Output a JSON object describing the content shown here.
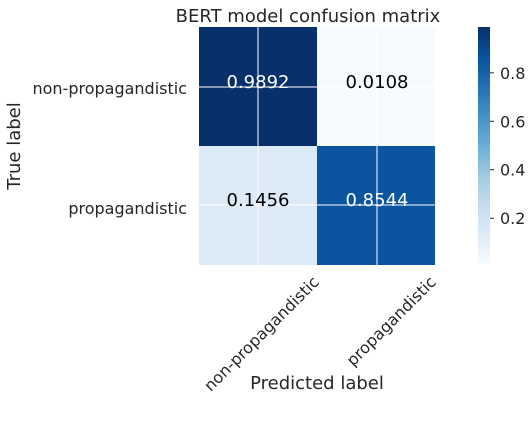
{
  "chart_data": {
    "type": "heatmap",
    "title": "BERT model confusion matrix",
    "xlabel": "Predicted label",
    "ylabel": "True label",
    "row_labels": [
      "non-propagandistic",
      "propagandistic"
    ],
    "col_labels": [
      "non-propagandistic",
      "propagandistic"
    ],
    "values": [
      [
        0.9892,
        0.0108
      ],
      [
        0.1456,
        0.8544
      ]
    ],
    "value_labels": [
      [
        "0.9892",
        "0.0108"
      ],
      [
        "0.1456",
        "0.8544"
      ]
    ],
    "colormap": "Blues",
    "color_range": [
      0.0108,
      0.9892
    ],
    "colorbar_ticks": [
      0.2,
      0.4,
      0.6,
      0.8
    ],
    "colorbar_tick_labels": [
      "0.2",
      "0.4",
      "0.6",
      "0.8"
    ],
    "grid": true
  }
}
